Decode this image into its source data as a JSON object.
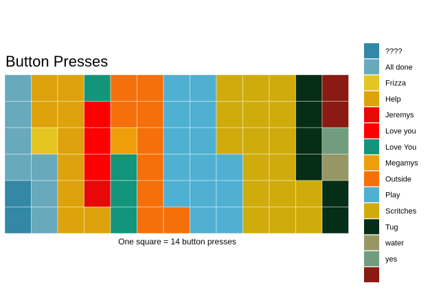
{
  "chart_data": {
    "type": "waffle",
    "title": "Button Presses",
    "caption": "One square = 14 button presses",
    "rows": 6,
    "columns": 13,
    "legend_position": "right",
    "categories": [
      {
        "name": "????",
        "color": "#3288a6"
      },
      {
        "name": "All done",
        "color": "#68a9bc"
      },
      {
        "name": "Frizza",
        "color": "#e5c522"
      },
      {
        "name": "Help",
        "color": "#dea30c"
      },
      {
        "name": "Jeremys",
        "color": "#e70808"
      },
      {
        "name": "Love you",
        "color": "#ff0000"
      },
      {
        "name": "Love You",
        "color": "#12957a"
      },
      {
        "name": "Megamys",
        "color": "#ef9e0b"
      },
      {
        "name": "Outside",
        "color": "#f5700b"
      },
      {
        "name": "Play",
        "color": "#4fb0d2"
      },
      {
        "name": "Scritches",
        "color": "#cfac0c"
      },
      {
        "name": "Tug",
        "color": "#062e17"
      },
      {
        "name": "water",
        "color": "#979766"
      },
      {
        "name": "yes",
        "color": "#719d7e"
      },
      {
        "name": "",
        "color": "#8a1a12"
      }
    ],
    "grid": [
      [
        "All done",
        "Help",
        "Help",
        "Love You",
        "Outside",
        "Outside",
        "Play",
        "Play",
        "Scritches",
        "Scritches",
        "Scritches",
        "Tug",
        ""
      ],
      [
        "All done",
        "Help",
        "Help",
        "Love you",
        "Outside",
        "Outside",
        "Play",
        "Play",
        "Scritches",
        "Scritches",
        "Scritches",
        "Tug",
        ""
      ],
      [
        "All done",
        "Frizza",
        "Help",
        "Love you",
        "Megamys",
        "Outside",
        "Play",
        "Play",
        "Scritches",
        "Scritches",
        "Scritches",
        "Tug",
        "yes"
      ],
      [
        "All done",
        "All done",
        "Help",
        "Love you",
        "Love You",
        "Outside",
        "Play",
        "Play",
        "Play",
        "Scritches",
        "Scritches",
        "Tug",
        "water"
      ],
      [
        "????",
        "All done",
        "Help",
        "Jeremys",
        "Love You",
        "Outside",
        "Play",
        "Play",
        "Play",
        "Scritches",
        "Scritches",
        "Scritches",
        "Tug"
      ],
      [
        "????",
        "All done",
        "Help",
        "Help",
        "Love You",
        "Outside",
        "Outside",
        "Play",
        "Play",
        "Scritches",
        "Scritches",
        "Scritches",
        "Tug"
      ]
    ]
  }
}
